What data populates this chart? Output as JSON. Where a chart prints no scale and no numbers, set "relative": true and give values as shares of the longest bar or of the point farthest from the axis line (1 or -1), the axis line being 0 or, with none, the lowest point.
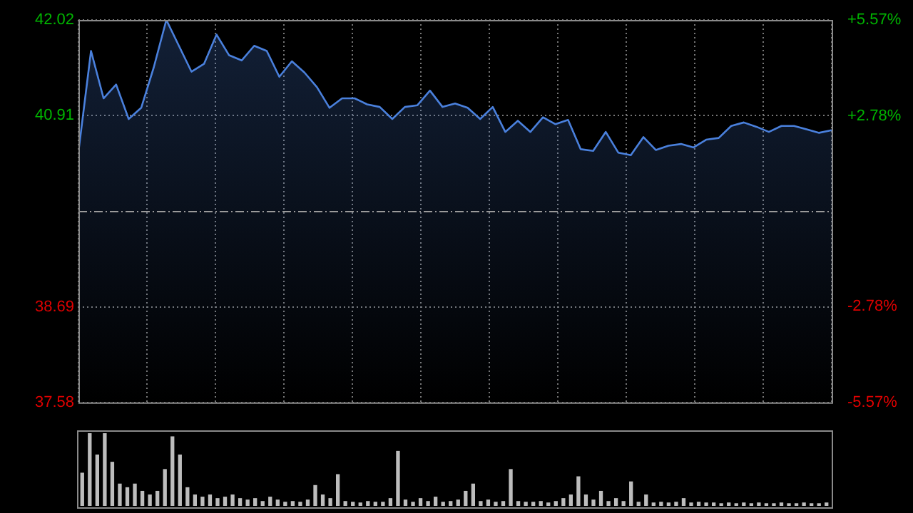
{
  "chart_data": [
    {
      "type": "area",
      "categories": [
        null,
        null,
        null,
        null,
        null,
        null,
        null,
        null,
        null,
        null,
        null,
        null,
        null,
        null,
        null,
        null,
        null,
        null,
        null,
        null,
        null,
        null,
        null,
        null,
        null,
        null,
        null,
        null,
        null,
        null,
        null,
        null,
        null,
        null,
        null,
        null,
        null,
        null,
        null,
        null,
        null,
        null,
        null,
        null,
        null,
        null,
        null,
        null,
        null,
        null,
        null,
        null,
        null,
        null,
        null,
        null,
        null,
        null,
        null,
        null,
        null
      ],
      "series": [
        {
          "color": "#4a80dc",
          "values": [
            40.49,
            41.66,
            41.11,
            41.27,
            40.87,
            41.0,
            41.47,
            42.02,
            41.72,
            41.42,
            41.51,
            41.85,
            41.61,
            41.55,
            41.72,
            41.66,
            41.36,
            41.54,
            41.41,
            41.24,
            41.0,
            41.11,
            41.11,
            41.04,
            41.01,
            40.87,
            41.01,
            41.03,
            41.2,
            41.01,
            41.05,
            41.0,
            40.87,
            41.01,
            40.72,
            40.85,
            40.72,
            40.89,
            40.81,
            40.86,
            40.52,
            40.5,
            40.72,
            40.48,
            40.45,
            40.66,
            40.51,
            40.56,
            40.58,
            40.54,
            40.63,
            40.65,
            40.79,
            40.83,
            40.78,
            40.72,
            40.79,
            40.79,
            40.75,
            40.71,
            40.74
          ]
        }
      ],
      "ylim": [
        37.58,
        42.02
      ],
      "yticks": [
        37.58,
        38.69,
        40.91,
        42.02
      ],
      "y2lim": [
        -5.57,
        5.57
      ],
      "y2ticks": [
        {
          "value": -5.57,
          "label": "-5.57%"
        },
        {
          "value": -2.78,
          "label": "-2.78%"
        },
        {
          "value": 2.78,
          "label": "+2.78%"
        },
        {
          "value": 5.57,
          "label": "+5.57%"
        }
      ],
      "ref_lines": [
        {
          "axis": "y",
          "value": 39.8,
          "line_style": "dashed"
        }
      ],
      "grid": true,
      "legend": false
    },
    {
      "type": "bar",
      "relative": true,
      "color": "#bdbdbd",
      "categories": [
        null,
        null,
        null,
        null,
        null,
        null,
        null,
        null,
        null,
        null,
        null,
        null,
        null,
        null,
        null,
        null,
        null,
        null,
        null,
        null,
        null,
        null,
        null,
        null,
        null,
        null,
        null,
        null,
        null,
        null,
        null,
        null,
        null,
        null,
        null,
        null,
        null,
        null,
        null,
        null,
        null,
        null,
        null,
        null,
        null,
        null,
        null,
        null,
        null,
        null,
        null,
        null,
        null,
        null,
        null,
        null,
        null,
        null,
        null,
        null,
        null,
        null,
        null,
        null,
        null,
        null,
        null,
        null,
        null,
        null,
        null,
        null,
        null,
        null,
        null,
        null,
        null,
        null,
        null,
        null,
        null,
        null,
        null,
        null,
        null,
        null,
        null,
        null,
        null,
        null,
        null,
        null,
        null,
        null,
        null,
        null,
        null,
        null,
        null,
        null
      ],
      "values": [
        0.45,
        1.0,
        0.7,
        1.0,
        0.6,
        0.3,
        0.25,
        0.3,
        0.2,
        0.15,
        0.2,
        0.5,
        0.95,
        0.7,
        0.25,
        0.15,
        0.12,
        0.15,
        0.1,
        0.12,
        0.15,
        0.1,
        0.08,
        0.1,
        0.06,
        0.12,
        0.08,
        0.05,
        0.06,
        0.05,
        0.08,
        0.28,
        0.15,
        0.1,
        0.43,
        0.06,
        0.05,
        0.04,
        0.06,
        0.05,
        0.05,
        0.1,
        0.75,
        0.08,
        0.05,
        0.1,
        0.06,
        0.12,
        0.05,
        0.06,
        0.08,
        0.2,
        0.3,
        0.06,
        0.08,
        0.05,
        0.06,
        0.5,
        0.06,
        0.05,
        0.05,
        0.06,
        0.04,
        0.06,
        0.1,
        0.15,
        0.4,
        0.15,
        0.08,
        0.2,
        0.06,
        0.1,
        0.06,
        0.33,
        0.05,
        0.15,
        0.04,
        0.05,
        0.04,
        0.05,
        0.1,
        0.04,
        0.05,
        0.04,
        0.04,
        0.03,
        0.04,
        0.03,
        0.04,
        0.03,
        0.04,
        0.03,
        0.03,
        0.04,
        0.03,
        0.03,
        0.04,
        0.03,
        0.03,
        0.04
      ],
      "legend": false
    }
  ]
}
